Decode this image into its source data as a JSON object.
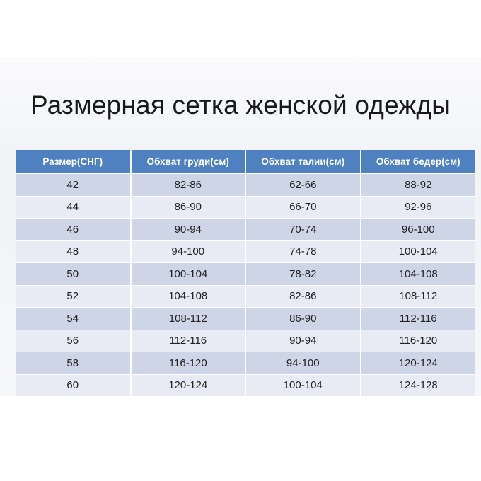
{
  "title": "Размерная сетка женской одежды",
  "table": {
    "headers": [
      "Размер(СНГ)",
      "Обхват груди(см)",
      "Обхват талии(см)",
      "Обхват бедер(см)"
    ],
    "rows": [
      [
        "42",
        "82-86",
        "62-66",
        "88-92"
      ],
      [
        "44",
        "86-90",
        "66-70",
        "92-96"
      ],
      [
        "46",
        "90-94",
        "70-74",
        "96-100"
      ],
      [
        "48",
        "94-100",
        "74-78",
        "100-104"
      ],
      [
        "50",
        "100-104",
        "78-82",
        "104-108"
      ],
      [
        "52",
        "104-108",
        "82-86",
        "108-112"
      ],
      [
        "54",
        "108-112",
        "86-90",
        "112-116"
      ],
      [
        "56",
        "112-116",
        "90-94",
        "116-120"
      ],
      [
        "58",
        "116-120",
        "94-100",
        "120-124"
      ],
      [
        "60",
        "120-124",
        "100-104",
        "124-128"
      ]
    ]
  },
  "colors": {
    "header": "#4f80bf",
    "row_dark": "#cdd5e7",
    "row_light": "#e8ebf3"
  }
}
